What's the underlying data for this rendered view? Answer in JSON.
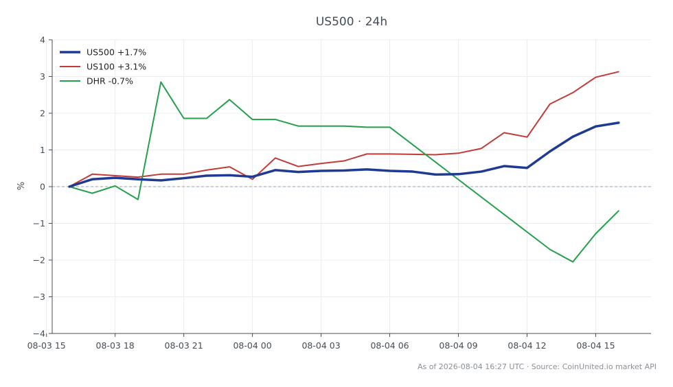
{
  "chart_data": {
    "type": "line",
    "title": "US500 · 24h",
    "xlabel": "",
    "ylabel": "%",
    "ylim": [
      -4,
      4
    ],
    "xlim": [
      "2026-08-03T15:15",
      "2026-08-04T17:25"
    ],
    "grid": true,
    "legend_placement": "top-left",
    "x_ticks": [
      "2026-08-03T15:00",
      "2026-08-03T18:00",
      "2026-08-03T21:00",
      "2026-08-04T00:00",
      "2026-08-04T03:00",
      "2026-08-04T06:00",
      "2026-08-04T09:00",
      "2026-08-04T12:00",
      "2026-08-04T15:00"
    ],
    "x_tick_labels": [
      "08-03 15",
      "08-03 18",
      "08-03 21",
      "08-04 00",
      "08-04 03",
      "08-04 06",
      "08-04 09",
      "08-04 12",
      "08-04 15"
    ],
    "y_ticks": [
      -4,
      -3,
      -2,
      -1,
      0,
      1,
      2,
      3,
      4
    ],
    "y_tick_labels": [
      "−4",
      "−3",
      "−2",
      "−1",
      "0",
      "1",
      "2",
      "3",
      "4"
    ],
    "x": [
      "2026-08-03T16:00",
      "2026-08-03T17:00",
      "2026-08-03T18:00",
      "2026-08-03T19:00",
      "2026-08-03T20:00",
      "2026-08-03T21:00",
      "2026-08-03T22:00",
      "2026-08-03T23:00",
      "2026-08-04T00:00",
      "2026-08-04T01:00",
      "2026-08-04T02:00",
      "2026-08-04T03:00",
      "2026-08-04T04:00",
      "2026-08-04T05:00",
      "2026-08-04T06:00",
      "2026-08-04T07:00",
      "2026-08-04T08:00",
      "2026-08-04T09:00",
      "2026-08-04T10:00",
      "2026-08-04T11:00",
      "2026-08-04T12:00",
      "2026-08-04T13:00",
      "2026-08-04T14:00",
      "2026-08-04T15:00",
      "2026-08-04T16:00"
    ],
    "series": [
      {
        "name": "US500 +1.7%",
        "color": "#1f3a93",
        "width": 3.5,
        "x": [
          "2026-08-03T16:00",
          "2026-08-03T17:00",
          "2026-08-03T18:00",
          "2026-08-03T19:00",
          "2026-08-03T20:00",
          "2026-08-03T21:00",
          "2026-08-03T22:00",
          "2026-08-03T23:00",
          "2026-08-04T00:00",
          "2026-08-04T01:00",
          "2026-08-04T02:00",
          "2026-08-04T03:00",
          "2026-08-04T04:00",
          "2026-08-04T05:00",
          "2026-08-04T06:00",
          "2026-08-04T07:00",
          "2026-08-04T08:00",
          "2026-08-04T09:00",
          "2026-08-04T10:00",
          "2026-08-04T11:00",
          "2026-08-04T12:00",
          "2026-08-04T13:00",
          "2026-08-04T14:00",
          "2026-08-04T15:00",
          "2026-08-04T16:00"
        ],
        "values": [
          0.0,
          0.2,
          0.24,
          0.2,
          0.17,
          0.23,
          0.3,
          0.31,
          0.27,
          0.45,
          0.4,
          0.43,
          0.44,
          0.47,
          0.43,
          0.41,
          0.33,
          0.34,
          0.41,
          0.56,
          0.51,
          0.96,
          1.36,
          1.64,
          1.74
        ]
      },
      {
        "name": "US100 +3.1%",
        "color": "#c43a36",
        "width": 2,
        "x": [
          "2026-08-03T16:00",
          "2026-08-03T17:00",
          "2026-08-03T18:00",
          "2026-08-03T19:00",
          "2026-08-03T20:00",
          "2026-08-03T21:00",
          "2026-08-03T22:00",
          "2026-08-03T23:00",
          "2026-08-04T00:00",
          "2026-08-04T01:00",
          "2026-08-04T02:00",
          "2026-08-04T03:00",
          "2026-08-04T04:00",
          "2026-08-04T05:00",
          "2026-08-04T06:00",
          "2026-08-04T07:00",
          "2026-08-04T08:00",
          "2026-08-04T09:00",
          "2026-08-04T10:00",
          "2026-08-04T11:00",
          "2026-08-04T12:00",
          "2026-08-04T13:00",
          "2026-08-04T14:00",
          "2026-08-04T15:00",
          "2026-08-04T16:00"
        ],
        "values": [
          0.0,
          0.34,
          0.3,
          0.26,
          0.34,
          0.34,
          0.45,
          0.54,
          0.2,
          0.78,
          0.55,
          0.63,
          0.7,
          0.89,
          0.89,
          0.88,
          0.87,
          0.91,
          1.04,
          1.47,
          1.35,
          2.25,
          2.56,
          2.98,
          3.13
        ]
      },
      {
        "name": "DHR -0.7%",
        "color": "#23a04a",
        "width": 2,
        "x": [
          "2026-08-03T16:00",
          "2026-08-03T17:00",
          "2026-08-03T18:00",
          "2026-08-03T19:00",
          "2026-08-03T20:00",
          "2026-08-03T21:00",
          "2026-08-03T22:00",
          "2026-08-03T23:00",
          "2026-08-04T00:00",
          "2026-08-04T01:00",
          "2026-08-04T02:00",
          "2026-08-04T03:00",
          "2026-08-04T04:00",
          "2026-08-04T05:00",
          "2026-08-04T06:00",
          "2026-08-04T13:00",
          "2026-08-04T14:00",
          "2026-08-04T15:00",
          "2026-08-04T16:00"
        ],
        "values": [
          0.0,
          -0.18,
          0.02,
          -0.35,
          2.85,
          1.86,
          1.86,
          2.37,
          1.83,
          1.83,
          1.65,
          1.65,
          1.65,
          1.62,
          1.62,
          -1.71,
          -2.05,
          -1.28,
          -0.66
        ]
      }
    ],
    "zero_line": {
      "value": 0,
      "style": "dashed",
      "color": "#8fa3b8"
    }
  },
  "footer": {
    "text": "As of 2026-08-04 16:27 UTC · Source: CoinUnited.io market API"
  }
}
